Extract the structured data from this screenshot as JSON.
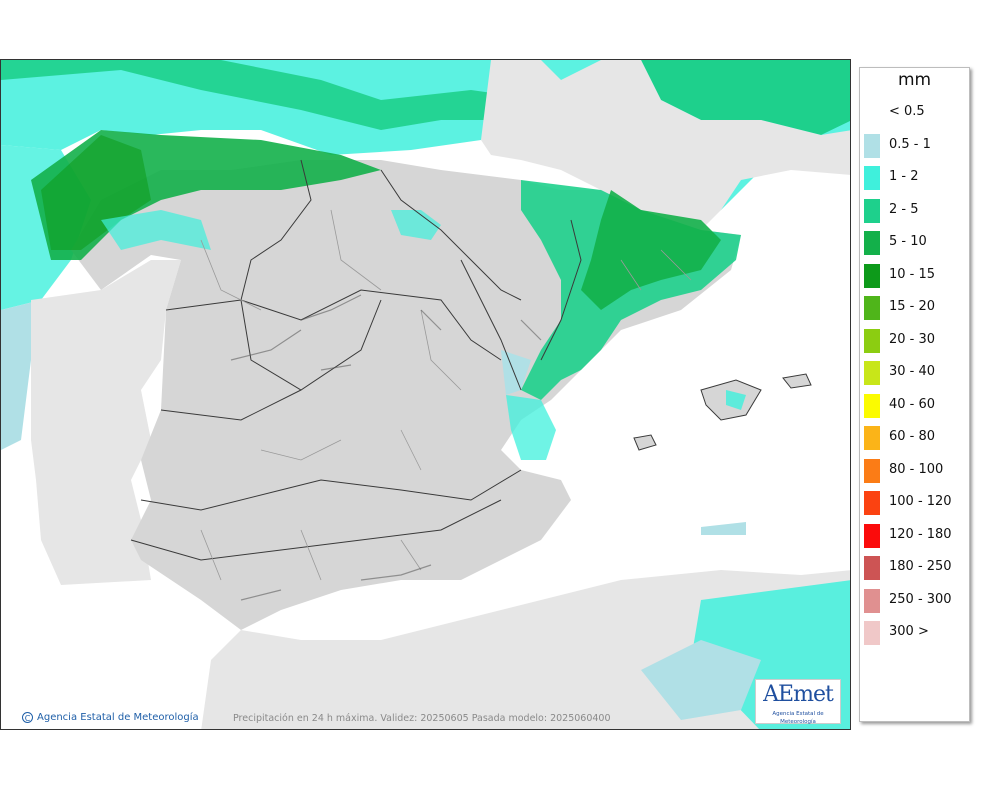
{
  "map": {
    "copyright": "Agencia Estatal de Meteorología",
    "caption": "Precipitación en 24 h máxima. Validez: 20250605 Pasada modelo: 2025060400",
    "logo_text": "AEmet",
    "logo_subtitle": "Agencia Estatal de Meteorología",
    "colors": {
      "sea": "#ffffff",
      "foreign_land": "#e6e6e6",
      "iberia_land": "#d6d6d6",
      "border": "#3a3a3a"
    }
  },
  "legend": {
    "title": "mm",
    "items": [
      {
        "label": "< 0.5",
        "color": ""
      },
      {
        "label": "0.5 - 1",
        "color": "#b0e0e6"
      },
      {
        "label": "1 - 2",
        "color": "#3ff0dc"
      },
      {
        "label": "2 - 5",
        "color": "#1ed08c"
      },
      {
        "label": "5 - 10",
        "color": "#13b04a"
      },
      {
        "label": "10 - 15",
        "color": "#0d9a1a"
      },
      {
        "label": "15 - 20",
        "color": "#4fb51a"
      },
      {
        "label": "20 - 30",
        "color": "#8ccd11"
      },
      {
        "label": "30 - 40",
        "color": "#c8e619"
      },
      {
        "label": "40 - 60",
        "color": "#fbfb00"
      },
      {
        "label": "60 - 80",
        "color": "#fbb418"
      },
      {
        "label": "80 - 100",
        "color": "#fb7c16"
      },
      {
        "label": "100 - 120",
        "color": "#fb4211"
      },
      {
        "label": "120 - 180",
        "color": "#fb0b0b"
      },
      {
        "label": "180 - 250",
        "color": "#cd5454"
      },
      {
        "label": "250 - 300",
        "color": "#e09090"
      },
      {
        "label": "300 >",
        "color": "#f0c8c8"
      }
    ]
  }
}
